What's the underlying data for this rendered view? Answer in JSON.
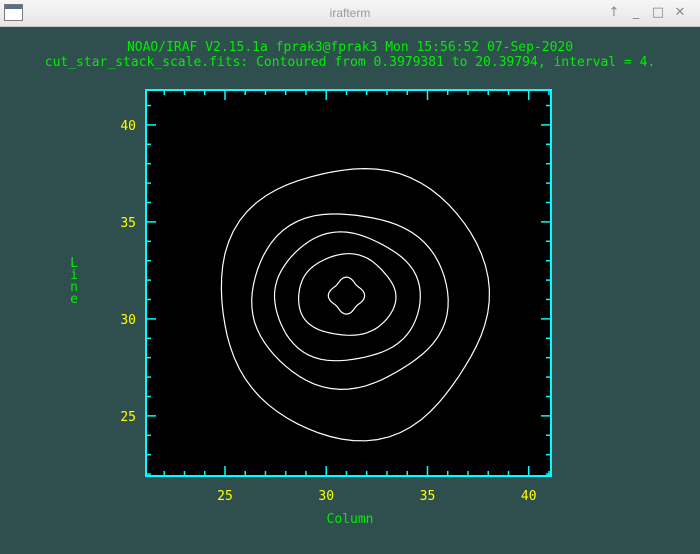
{
  "window": {
    "title": "irafterm",
    "icons": [
      "up-arrow-icon",
      "minimize-icon",
      "maximize-icon",
      "close-icon"
    ]
  },
  "header": {
    "line1": "NOAO/IRAF V2.15.1a fprak3@fprak3 Mon 15:56:52 07-Sep-2020",
    "line2": "cut_star_stack_scale.fits: Contoured from 0.3979381 to 20.39794, interval = 4."
  },
  "colors": {
    "background": "#2f4f4f",
    "frame": "#00ffff",
    "text": "#00ee00",
    "ticklabel": "#ffff00",
    "contour": "#ffffff"
  },
  "chart_data": {
    "type": "contour",
    "xlabel": "Column",
    "ylabel": "Line",
    "xlim": [
      21.1,
      41.1
    ],
    "ylim": [
      21.9,
      41.8
    ],
    "xticks": [
      25,
      30,
      35,
      40
    ],
    "yticks": [
      25,
      30,
      35,
      40
    ],
    "contour_levels": [
      0.3979381,
      4.3979381,
      8.3979381,
      12.3979381,
      16.3979381
    ],
    "interval": 4,
    "center": [
      31.0,
      31.2
    ],
    "contours": [
      {
        "level": 0.3979381,
        "semi_x": 6.6,
        "semi_y": 7.0,
        "dx": 0.35,
        "dy": -0.3
      },
      {
        "level": 4.3979381,
        "semi_x": 4.85,
        "semi_y": 4.5,
        "dx": 0.1,
        "dy": -0.2
      },
      {
        "level": 8.3979381,
        "semi_x": 3.6,
        "semi_y": 3.3,
        "dx": 0.0,
        "dy": -0.1
      },
      {
        "level": 12.3979381,
        "semi_x": 2.4,
        "semi_y": 2.1,
        "dx": 0.0,
        "dy": 0.0
      },
      {
        "level": 16.3979381,
        "semi_x": 0.8,
        "semi_y": 0.85,
        "dx": 0.0,
        "dy": 0.0
      }
    ]
  }
}
